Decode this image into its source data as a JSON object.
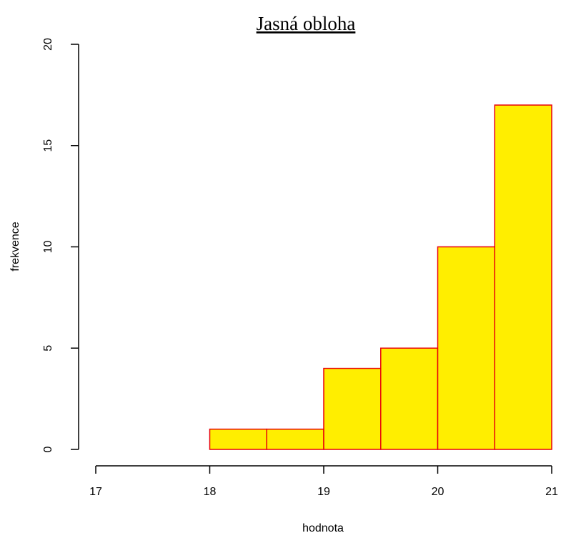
{
  "chart_data": {
    "type": "bar",
    "title": "Jasná obloha",
    "xlabel": "hodnota",
    "ylabel": "frekvence",
    "bins": [
      {
        "start": 18.0,
        "end": 18.5,
        "count": 1
      },
      {
        "start": 18.5,
        "end": 19.0,
        "count": 1
      },
      {
        "start": 19.0,
        "end": 19.5,
        "count": 4
      },
      {
        "start": 19.5,
        "end": 20.0,
        "count": 5
      },
      {
        "start": 20.0,
        "end": 20.5,
        "count": 10
      },
      {
        "start": 20.5,
        "end": 21.0,
        "count": 17
      }
    ],
    "xlim": [
      17,
      21
    ],
    "ylim": [
      0,
      20
    ],
    "xticks": [
      17,
      18,
      19,
      20,
      21
    ],
    "yticks": [
      0,
      5,
      10,
      15,
      20
    ],
    "grid": false,
    "bar_fill": "#FFEE00",
    "bar_border": "#E8000A"
  }
}
